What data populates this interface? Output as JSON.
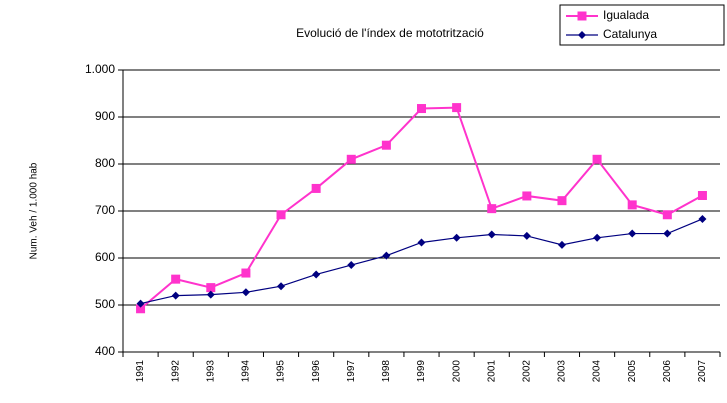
{
  "chart_data": {
    "type": "line",
    "title": "Evolució de l'índex de mototrització",
    "ylabel": "Num. Veh / 1.000 hab",
    "categories": [
      "1991",
      "1992",
      "1993",
      "1994",
      "1995",
      "1996",
      "1997",
      "1998",
      "1999",
      "2000",
      "2001",
      "2002",
      "2003",
      "2004",
      "2005",
      "2006",
      "2007"
    ],
    "series": [
      {
        "name": "Igualada",
        "color": "#ff33cc",
        "marker": "square",
        "values": [
          492,
          555,
          537,
          568,
          692,
          748,
          810,
          840,
          918,
          920,
          705,
          732,
          722,
          810,
          713,
          692,
          733
        ]
      },
      {
        "name": "Catalunya",
        "color": "#000080",
        "marker": "diamond",
        "values": [
          503,
          520,
          522,
          527,
          540,
          565,
          585,
          605,
          633,
          643,
          650,
          647,
          628,
          643,
          652,
          652,
          683
        ]
      }
    ],
    "ylim": [
      400,
      1000
    ],
    "yticks": [
      400,
      500,
      600,
      700,
      800,
      900,
      {
        "value": 1000,
        "label": "1.000"
      }
    ],
    "grid": true,
    "legend": "top-right"
  }
}
